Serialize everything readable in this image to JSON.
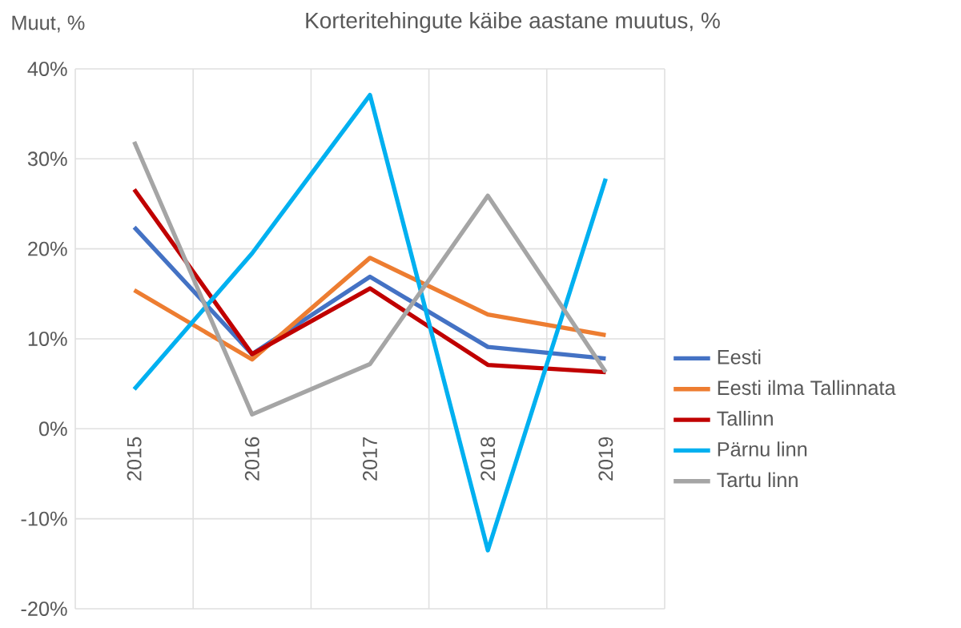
{
  "chart_data": {
    "type": "line",
    "title": "Korteritehingute käibe aastane muutus, %",
    "ylabel": "Muut, %",
    "categories": [
      "2015",
      "2016",
      "2017",
      "2018",
      "2019"
    ],
    "series": [
      {
        "name": "Eesti",
        "color": "#4472c4",
        "values": [
          22.4,
          8.3,
          16.9,
          9.1,
          7.8
        ]
      },
      {
        "name": "Eesti ilma Tallinnata",
        "color": "#ed7d31",
        "values": [
          15.4,
          7.7,
          19.0,
          12.7,
          10.4
        ]
      },
      {
        "name": "Tallinn",
        "color": "#c00000",
        "values": [
          26.6,
          8.3,
          15.6,
          7.1,
          6.3
        ]
      },
      {
        "name": "Pärnu linn",
        "color": "#00b0f0",
        "values": [
          4.4,
          19.5,
          37.1,
          -13.5,
          27.8
        ]
      },
      {
        "name": "Tartu linn",
        "color": "#a5a5a5",
        "values": [
          31.9,
          1.6,
          7.2,
          25.9,
          6.3
        ]
      }
    ],
    "ylim": [
      -20,
      40
    ],
    "yticks": [
      {
        "value": -20,
        "label": "-20%"
      },
      {
        "value": -10,
        "label": "-10%"
      },
      {
        "value": 0,
        "label": "0%"
      },
      {
        "value": 10,
        "label": "10%"
      },
      {
        "value": 20,
        "label": "20%"
      },
      {
        "value": 30,
        "label": "30%"
      },
      {
        "value": 40,
        "label": "40%"
      }
    ],
    "grid": true,
    "legend": "right",
    "marker": "none",
    "line_style": "solid"
  }
}
